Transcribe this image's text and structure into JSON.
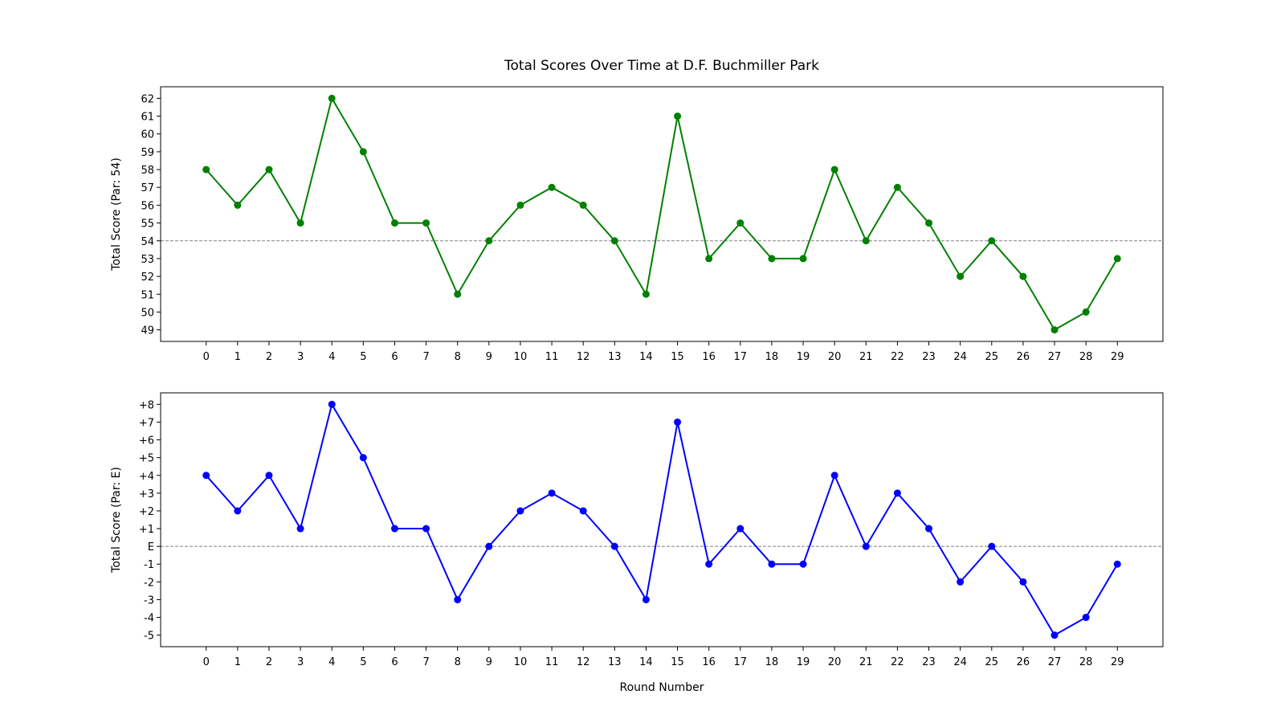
{
  "figure": {
    "title": "Total Scores Over Time at D.F. Buchmiller Park",
    "xlabel": "Round Number"
  },
  "chart_data": [
    {
      "type": "line",
      "ylabel": "Total Score (Par: 54)",
      "x": [
        0,
        1,
        2,
        3,
        4,
        5,
        6,
        7,
        8,
        9,
        10,
        11,
        12,
        13,
        14,
        15,
        16,
        17,
        18,
        19,
        20,
        21,
        22,
        23,
        24,
        25,
        26,
        27,
        28,
        29
      ],
      "values": [
        58,
        56,
        58,
        55,
        62,
        59,
        55,
        55,
        51,
        54,
        56,
        57,
        56,
        54,
        51,
        61,
        53,
        55,
        53,
        53,
        58,
        54,
        57,
        55,
        52,
        54,
        52,
        49,
        50,
        53
      ],
      "xlim": [
        -1.45,
        30.45
      ],
      "ylim": [
        48.35,
        62.65
      ],
      "yticks": [
        49,
        50,
        51,
        52,
        53,
        54,
        55,
        56,
        57,
        58,
        59,
        60,
        61,
        62
      ],
      "ytick_labels": [
        "49",
        "50",
        "51",
        "52",
        "53",
        "54",
        "55",
        "56",
        "57",
        "58",
        "59",
        "60",
        "61",
        "62"
      ],
      "reference_line": 54,
      "color": "#008000",
      "grid": false
    },
    {
      "type": "line",
      "ylabel": "Total Score (Par: E)",
      "x": [
        0,
        1,
        2,
        3,
        4,
        5,
        6,
        7,
        8,
        9,
        10,
        11,
        12,
        13,
        14,
        15,
        16,
        17,
        18,
        19,
        20,
        21,
        22,
        23,
        24,
        25,
        26,
        27,
        28,
        29
      ],
      "values": [
        4,
        2,
        4,
        1,
        8,
        5,
        1,
        1,
        -3,
        0,
        2,
        3,
        2,
        0,
        -3,
        7,
        -1,
        1,
        -1,
        -1,
        4,
        0,
        3,
        1,
        -2,
        0,
        -2,
        -5,
        -4,
        -1
      ],
      "xlim": [
        -1.45,
        30.45
      ],
      "ylim": [
        -5.65,
        8.65
      ],
      "yticks": [
        -5,
        -4,
        -3,
        -2,
        -1,
        0,
        1,
        2,
        3,
        4,
        5,
        6,
        7,
        8
      ],
      "ytick_labels": [
        "-5",
        "-4",
        "-3",
        "-2",
        "-1",
        "E",
        "+1",
        "+2",
        "+3",
        "+4",
        "+5",
        "+6",
        "+7",
        "+8"
      ],
      "reference_line": 0,
      "color": "#0000ff",
      "grid": false
    }
  ]
}
